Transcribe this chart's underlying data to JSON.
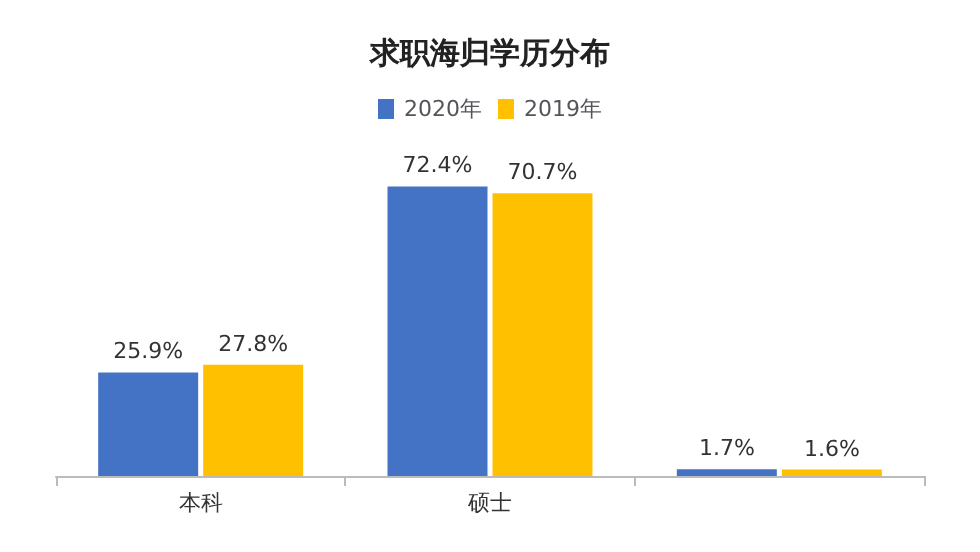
{
  "chart_data": {
    "type": "bar",
    "title": "求职海归学历分布",
    "categories": [
      "本科",
      "硕士",
      null
    ],
    "series": [
      {
        "name": "2020年",
        "color": "#4472c4",
        "values": [
          25.9,
          72.4,
          1.7
        ],
        "value_labels": [
          "25.9%",
          "72.4%",
          "1.7%"
        ]
      },
      {
        "name": "2019年",
        "color": "#ffc000",
        "values": [
          27.8,
          70.7,
          1.6
        ],
        "value_labels": [
          "27.8%",
          "70.7%",
          "1.6%"
        ]
      }
    ],
    "legend": "top"
  }
}
